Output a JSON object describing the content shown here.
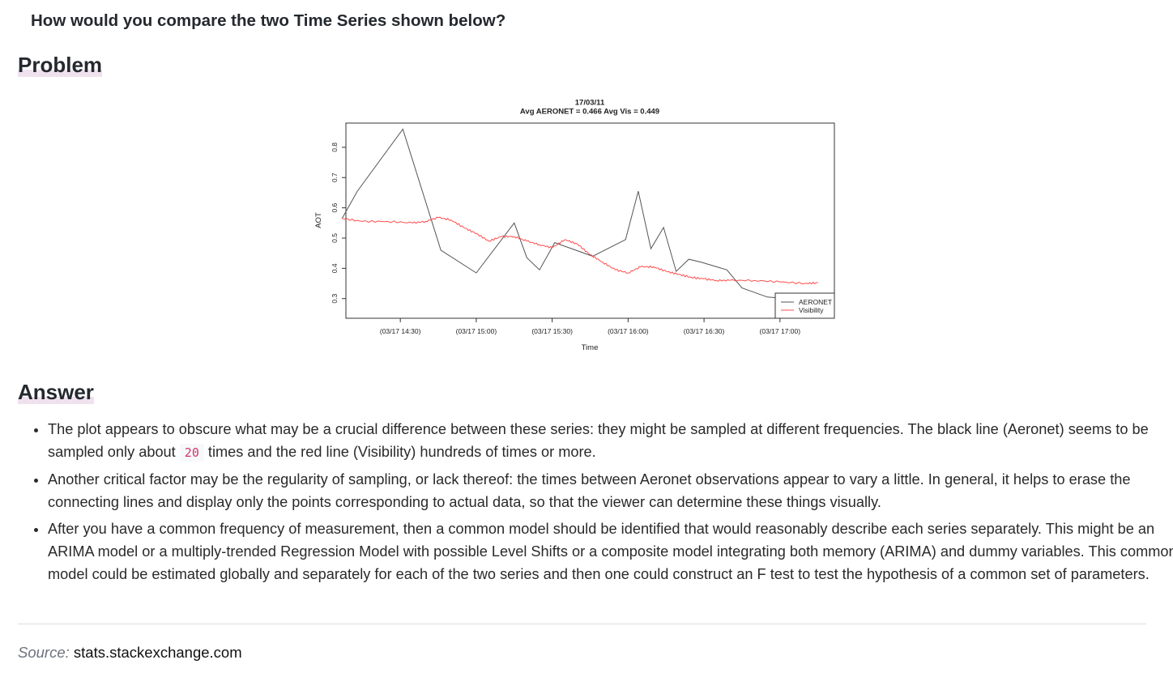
{
  "question": "How would you compare the two Time Series shown below?",
  "headings": {
    "problem": "Problem",
    "answer": "Answer"
  },
  "chart_data": {
    "type": "line",
    "title": "17/03/11",
    "subtitle": "Avg AERONET = 0.466 Avg Vis = 0.449",
    "xlabel": "Time",
    "ylabel": "AOT",
    "x_tick_labels": [
      "(03/17 14:30)",
      "(03/17 15:00)",
      "(03/17 15:30)",
      "(03/17 16:00)",
      "(03/17 16:30)",
      "(03/17 17:00)"
    ],
    "x_ticks_minutes_after_14_00": [
      30,
      60,
      90,
      120,
      150,
      180
    ],
    "y_tick_labels": [
      "0.3",
      "0.4",
      "0.5",
      "0.6",
      "0.7",
      "0.8"
    ],
    "y_ticks": [
      0.3,
      0.4,
      0.5,
      0.6,
      0.7,
      0.8
    ],
    "xlim_minutes_after_14_00": [
      8.5,
      201.5
    ],
    "ylim": [
      0.235,
      0.88
    ],
    "grid": false,
    "legend_position": "bottom-right",
    "series": [
      {
        "name": "AERONET",
        "color": "#555555",
        "x_minutes_after_14_00": [
          7,
          13,
          31,
          46,
          60,
          75,
          80,
          85,
          91,
          106,
          119,
          124,
          129,
          134,
          139,
          144,
          149,
          159,
          165,
          175,
          183,
          193
        ],
        "y": [
          0.565,
          0.655,
          0.86,
          0.46,
          0.385,
          0.55,
          0.435,
          0.395,
          0.485,
          0.44,
          0.495,
          0.655,
          0.465,
          0.535,
          0.39,
          0.43,
          0.42,
          0.395,
          0.335,
          0.305,
          0.3,
          0.29
        ]
      },
      {
        "name": "Visibility",
        "color": "#ff4d4d",
        "x_minutes_after_14_00": [
          7,
          15,
          25,
          35,
          40,
          45,
          50,
          55,
          60,
          65,
          70,
          75,
          80,
          85,
          90,
          95,
          100,
          105,
          110,
          115,
          120,
          125,
          130,
          135,
          140,
          145,
          150,
          155,
          160,
          170,
          180,
          190,
          195
        ],
        "y": [
          0.565,
          0.555,
          0.555,
          0.55,
          0.555,
          0.568,
          0.56,
          0.535,
          0.515,
          0.49,
          0.505,
          0.505,
          0.49,
          0.478,
          0.468,
          0.495,
          0.48,
          0.445,
          0.42,
          0.395,
          0.385,
          0.405,
          0.405,
          0.39,
          0.38,
          0.37,
          0.365,
          0.36,
          0.36,
          0.36,
          0.355,
          0.35,
          0.352
        ]
      }
    ]
  },
  "answer_items": [
    {
      "before": "The plot appears to obscure what may be a crucial difference between these series: they might be sampled at different frequencies. The black line (Aeronet) seems to be sampled only about ",
      "code": "20",
      "after": " times and the red line (Visibility) hundreds of times or more."
    },
    {
      "text": "Another critical factor may be the regularity of sampling, or lack thereof: the times between Aeronet observations appear to vary a little. In general, it helps to erase the connecting lines and display only the points corresponding to actual data, so that the viewer can determine these things visually."
    },
    {
      "text": "After you have a common frequency of measurement, then a common model should be identified that would reasonably describe each series separately. This might be an ARIMA model or a multiply-trended Regression Model with possible Level Shifts or a composite model integrating both memory (ARIMA) and dummy variables. This common model could be estimated globally and separately for each of the two series and then one could construct an F test to test the hypothesis of a common set of parameters."
    }
  ],
  "source": {
    "label": "Source:",
    "value": "stats.stackexchange.com"
  }
}
